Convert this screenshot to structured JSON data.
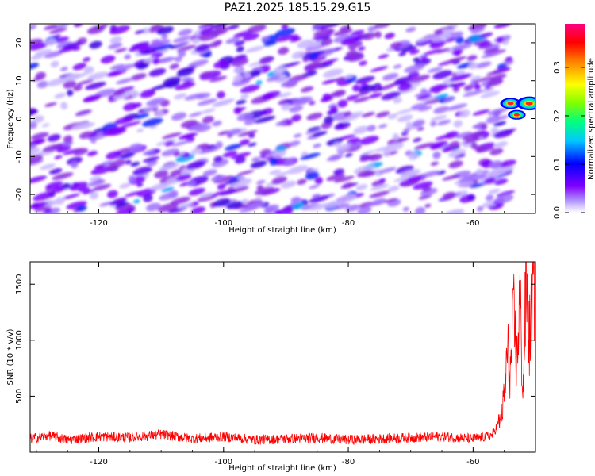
{
  "title": "PAZ1.2025.185.15.29.G15",
  "chart_data": [
    {
      "type": "heatmap",
      "xlabel": "Height of straight line (km)",
      "ylabel": "Frequency (Hz)",
      "xlim": [
        -131,
        -50
      ],
      "ylim": [
        -25,
        25
      ],
      "xticks": [
        -120,
        -100,
        -80,
        -60
      ],
      "yticks": [
        20,
        10,
        0,
        -10,
        -20
      ],
      "grid": false,
      "colorbar": {
        "label": "Normalized spectral amplitude",
        "range": [
          0,
          0.39
        ],
        "ticks": [
          0.0,
          0.1,
          0.2,
          0.3
        ],
        "colors": [
          "#ffffff",
          "#b49aff",
          "#8000ff",
          "#0000ff",
          "#00c8ff",
          "#00ff80",
          "#80ff00",
          "#ffff00",
          "#ff8000",
          "#ff0000",
          "#ff0080"
        ]
      },
      "hotspots": [
        {
          "x": -54,
          "y": 4,
          "value": 0.3
        },
        {
          "x": -51,
          "y": 4,
          "value": 0.38
        },
        {
          "x": -53,
          "y": 1,
          "value": 0.25
        }
      ]
    },
    {
      "type": "line",
      "xlabel": "Height of straight line (km)",
      "ylabel": "SNR (10 * v/v)",
      "xlim": [
        -131,
        -50
      ],
      "ylim": [
        0,
        1700
      ],
      "xticks": [
        -120,
        -100,
        -80,
        -60
      ],
      "yticks": [
        500,
        1000,
        1500
      ],
      "grid": false,
      "series_color": "#ff0000",
      "series": [
        {
          "x": [
            -131,
            -128,
            -125,
            -120,
            -115,
            -110,
            -105,
            -100,
            -95,
            -90,
            -85,
            -80,
            -75,
            -70,
            -65,
            -60,
            -57,
            -55.5,
            -55,
            -54.5,
            -54,
            -53.5,
            -53,
            -52.5,
            -52,
            -51.5,
            -51,
            -50.5,
            -50
          ],
          "y": [
            120,
            150,
            110,
            140,
            130,
            160,
            120,
            140,
            110,
            120,
            130,
            110,
            120,
            130,
            140,
            120,
            150,
            300,
            500,
            900,
            700,
            1200,
            800,
            1400,
            500,
            1550,
            1000,
            1300,
            1600
          ]
        }
      ]
    }
  ]
}
